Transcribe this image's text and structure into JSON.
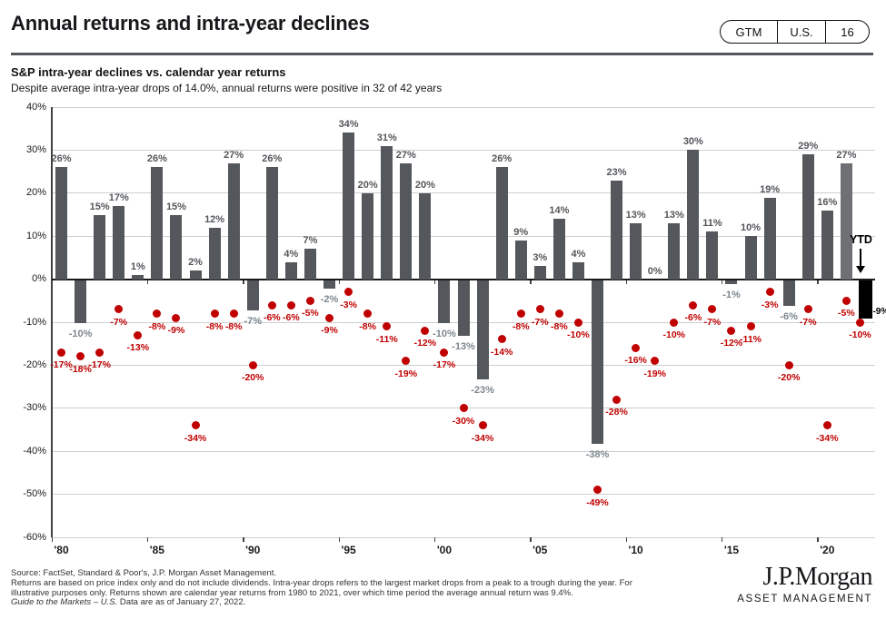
{
  "header": {
    "title": "Annual returns and intra-year declines",
    "badge": {
      "items": [
        "GTM",
        "U.S.",
        "16"
      ]
    }
  },
  "chart": {
    "heading": "S&P intra-year declines vs. calendar year returns",
    "subtitle": "Despite average intra-year drops of 14.0%, annual returns were positive in 32 of 42 years"
  },
  "chart_data": {
    "type": "bar",
    "subtype": "bar-plus-scatter",
    "title": "S&P intra-year declines vs. calendar year returns",
    "categories": [
      "1980",
      "1981",
      "1982",
      "1983",
      "1984",
      "1985",
      "1986",
      "1987",
      "1988",
      "1989",
      "1990",
      "1991",
      "1992",
      "1993",
      "1994",
      "1995",
      "1996",
      "1997",
      "1998",
      "1999",
      "2000",
      "2001",
      "2002",
      "2003",
      "2004",
      "2005",
      "2006",
      "2007",
      "2008",
      "2009",
      "2010",
      "2011",
      "2012",
      "2013",
      "2014",
      "2015",
      "2016",
      "2017",
      "2018",
      "2019",
      "2020",
      "2021",
      "YTD"
    ],
    "series": [
      {
        "name": "Calendar year returns",
        "type": "bar",
        "values": [
          26,
          -10,
          15,
          17,
          1,
          26,
          15,
          2,
          12,
          27,
          -7,
          26,
          4,
          7,
          -2,
          34,
          20,
          31,
          27,
          20,
          -10,
          -13,
          -23,
          26,
          9,
          3,
          14,
          4,
          -38,
          23,
          13,
          0,
          13,
          30,
          11,
          -1,
          10,
          19,
          -6,
          29,
          16,
          27,
          -9
        ]
      },
      {
        "name": "Intra-year declines",
        "type": "scatter",
        "values": [
          -17,
          -18,
          -17,
          -7,
          -13,
          -8,
          -9,
          -34,
          -8,
          -8,
          -20,
          -6,
          -6,
          -5,
          -9,
          -3,
          -8,
          -11,
          -19,
          -12,
          -17,
          -30,
          -34,
          -14,
          -8,
          -7,
          -8,
          -10,
          -49,
          -28,
          -16,
          -19,
          -10,
          -6,
          -7,
          -12,
          -11,
          -3,
          -20,
          -7,
          -34,
          -5,
          -10
        ]
      }
    ],
    "ylim": [
      -60,
      40
    ],
    "y_tick_labels": [
      "40%",
      "30%",
      "20%",
      "10%",
      "0%",
      "-10%",
      "-20%",
      "-30%",
      "-40%",
      "-50%",
      "-60%"
    ],
    "x_tick_labels": [
      "'80",
      "'85",
      "'90",
      "'95",
      "'00",
      "'05",
      "'10",
      "'15",
      "'20"
    ],
    "grid": "horizontal",
    "ytd_annotation": "YTD",
    "average_intra_year_drop": "14.0%",
    "positive_years": "32 of 42"
  },
  "colors": {
    "bar": "#54575B",
    "bar_2021": "#6E7073",
    "ytd_bar": "#000000",
    "decline_dot": "#C00000",
    "decline_label": "#C00000",
    "positive_label": "#53565A",
    "negative_label": "#7C878E",
    "divider": "#53565A"
  },
  "footer": {
    "line1": "Source: FactSet, Standard & Poor's, J.P. Morgan Asset Management.",
    "line2": "Returns are based on price index only and do not include dividends. Intra-year drops refers to the largest market drops from a peak to a trough during the year. For",
    "line3": "illustrative purposes only. Returns shown are calendar year returns from 1980 to 2021, over which time period the average annual return was 9.4%.",
    "line4_italic": "Guide to the Markets – U.S.",
    "line4_rest": " Data are as of January 27, 2022."
  },
  "logo": {
    "brand": "J.P.Morgan",
    "division": "ASSET MANAGEMENT"
  }
}
